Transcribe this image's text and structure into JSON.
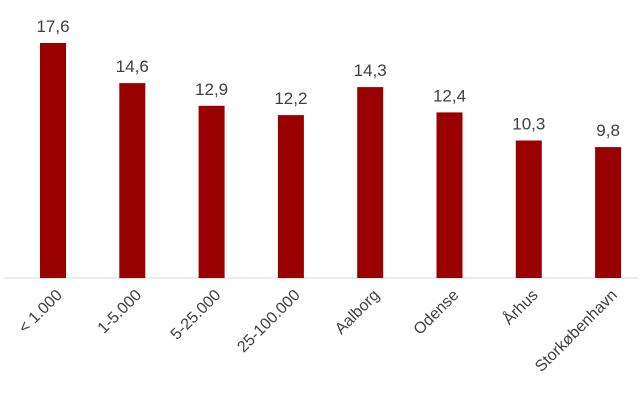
{
  "chart_data": {
    "type": "bar",
    "categories": [
      "< 1.000",
      "1-5.000",
      "5-25.000",
      "25-100.000",
      "Aalborg",
      "Odense",
      "Århus",
      "Storkøbenhavn"
    ],
    "values": [
      17.6,
      14.6,
      12.9,
      12.2,
      14.3,
      12.4,
      10.3,
      9.8
    ],
    "value_labels": [
      "17,6",
      "14,6",
      "12,9",
      "12,2",
      "14,3",
      "12,4",
      "10,3",
      "9,8"
    ],
    "ylim": [
      0,
      17.6
    ],
    "grid": false,
    "legend": "none",
    "colors": {
      "bar": "#990000",
      "text": "#404040",
      "axis": "#d9d9d9"
    }
  }
}
